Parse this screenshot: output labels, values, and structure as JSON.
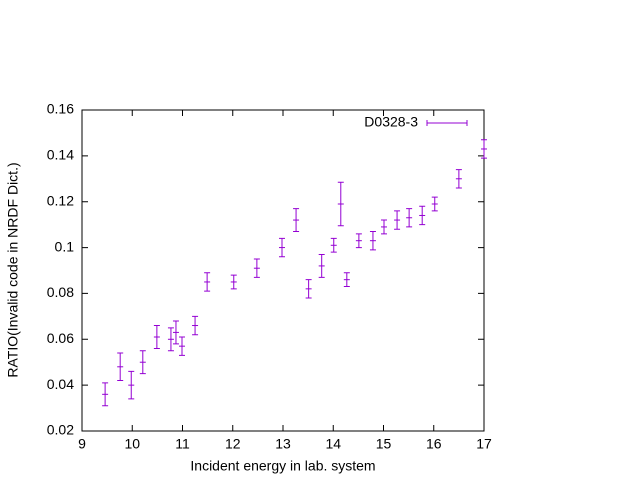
{
  "chart_data": {
    "type": "errorbar",
    "xlabel": "Incident energy in lab. system",
    "ylabel": "RATIO(Invalid code in NRDF Dict.)",
    "xlim": [
      9,
      17
    ],
    "xticks": [
      9,
      10,
      11,
      12,
      13,
      14,
      15,
      16,
      17
    ],
    "ylim": [
      0.02,
      0.16
    ],
    "yticks": [
      0.02,
      0.04,
      0.06,
      0.08,
      0.1,
      0.12,
      0.14,
      0.16
    ],
    "legend": "top-right",
    "grid": false,
    "series": [
      {
        "name": "D0328-3",
        "color": "#9400d3",
        "x": [
          9.46,
          9.76,
          9.98,
          10.21,
          10.49,
          10.77,
          10.87,
          10.99,
          11.25,
          11.49,
          12.02,
          12.48,
          12.98,
          13.26,
          13.51,
          13.77,
          14.01,
          14.15,
          14.27,
          14.51,
          14.79,
          15.01,
          15.27,
          15.51,
          15.77,
          16.02,
          16.5,
          17.0
        ],
        "values": [
          0.036,
          0.048,
          0.04,
          0.05,
          0.061,
          0.06,
          0.063,
          0.057,
          0.066,
          0.085,
          0.085,
          0.091,
          0.1,
          0.112,
          0.082,
          0.092,
          0.101,
          0.119,
          0.086,
          0.103,
          0.103,
          0.109,
          0.112,
          0.113,
          0.114,
          0.119,
          0.13,
          0.143
        ],
        "errors": [
          0.005,
          0.006,
          0.006,
          0.005,
          0.005,
          0.005,
          0.005,
          0.004,
          0.004,
          0.004,
          0.003,
          0.004,
          0.004,
          0.005,
          0.004,
          0.005,
          0.003,
          0.0095,
          0.003,
          0.003,
          0.004,
          0.003,
          0.004,
          0.004,
          0.004,
          0.003,
          0.004,
          0.004
        ]
      }
    ]
  }
}
